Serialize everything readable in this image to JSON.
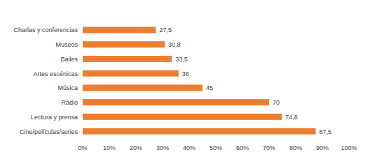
{
  "chart_data": {
    "type": "bar",
    "orientation": "horizontal",
    "categories": [
      "Charlas y conferencias",
      "Museos",
      "Bailes",
      "Artes escénicas",
      "Música",
      "Radio",
      "Lectura y prensa",
      "Cine/películas/series"
    ],
    "values": [
      27.5,
      30.8,
      33.5,
      36,
      45,
      70,
      74.8,
      87.5
    ],
    "value_labels": [
      "27,5",
      "30,8",
      "33,5",
      "36",
      "45",
      "70",
      "74,8",
      "87,5"
    ],
    "data_labels": true,
    "color": "#ed7d31",
    "xlim": [
      0,
      100
    ],
    "xticks": [
      {
        "value": 0,
        "label": "0%"
      },
      {
        "value": 10,
        "label": "10%"
      },
      {
        "value": 20,
        "label": "20%"
      },
      {
        "value": 30,
        "label": "30%"
      },
      {
        "value": 40,
        "label": "40%"
      },
      {
        "value": 50,
        "label": "50%"
      },
      {
        "value": 60,
        "label": "60%"
      },
      {
        "value": 70,
        "label": "70%"
      },
      {
        "value": 80,
        "label": "80%"
      },
      {
        "value": 90,
        "label": "90%"
      },
      {
        "value": 100,
        "label": "100%"
      }
    ],
    "grid": false
  }
}
